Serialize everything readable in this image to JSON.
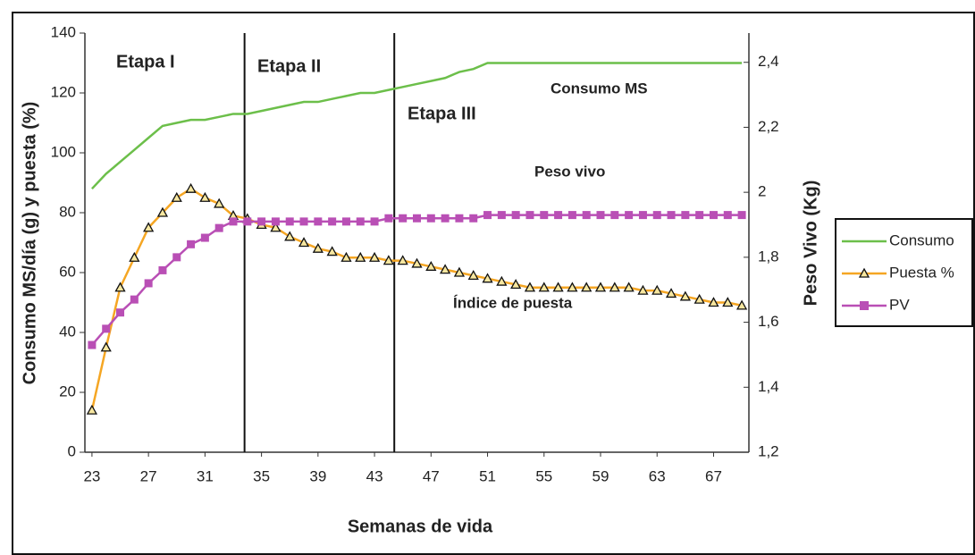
{
  "chart_data": {
    "type": "line",
    "xlabel": "Semanas de vida",
    "ylabel": "Consumo MS/día (g) y puesta (%)",
    "y2label": "Peso Vivo (Kg)",
    "x": [
      23,
      24,
      25,
      26,
      27,
      28,
      29,
      30,
      31,
      32,
      33,
      34,
      35,
      36,
      37,
      38,
      39,
      40,
      41,
      42,
      43,
      44,
      45,
      46,
      47,
      48,
      49,
      50,
      51,
      52,
      53,
      54,
      55,
      56,
      57,
      58,
      59,
      60,
      61,
      62,
      63,
      64,
      65,
      66,
      67,
      68,
      69
    ],
    "xlim": [
      22.5,
      69.5
    ],
    "xticks": [
      23,
      27,
      31,
      35,
      39,
      43,
      47,
      51,
      55,
      59,
      63,
      67
    ],
    "ylim": [
      0,
      140
    ],
    "yticks": [
      0,
      20,
      40,
      60,
      80,
      100,
      120,
      140
    ],
    "y2lim": [
      1.2,
      2.49
    ],
    "y2ticks": [
      {
        "value": 1.2,
        "label": "1,2"
      },
      {
        "value": 1.4,
        "label": "1,4"
      },
      {
        "value": 1.6,
        "label": "1,6"
      },
      {
        "value": 1.8,
        "label": "1,8"
      },
      {
        "value": 2,
        "label": "2"
      },
      {
        "value": 2.2,
        "label": "2,2"
      },
      {
        "value": 2.4,
        "label": "2,4"
      }
    ],
    "stage_lines": [
      33.8,
      44.4
    ],
    "annotations": [
      "Etapa I",
      "Etapa II",
      "Etapa III",
      "Consumo MS",
      "Peso vivo",
      "Índice de puesta"
    ],
    "legend": "right",
    "series": [
      {
        "name": "Consumo",
        "color": "#6cbf4a",
        "marker": "none",
        "values": [
          88,
          93,
          97,
          101,
          105,
          109,
          110,
          111,
          111,
          112,
          113,
          113,
          114,
          115,
          116,
          117,
          117,
          118,
          119,
          120,
          120,
          121,
          122,
          123,
          124,
          125,
          127,
          128,
          130,
          130,
          130,
          130,
          130,
          130,
          130,
          130,
          130,
          130,
          130,
          130,
          130,
          130,
          130,
          130,
          130,
          130,
          130
        ]
      },
      {
        "name": "Puesta %",
        "color": "#f5a623",
        "marker": "triangle",
        "values": [
          14,
          35,
          55,
          65,
          75,
          80,
          85,
          88,
          85,
          83,
          79,
          78,
          76,
          75,
          72,
          70,
          68,
          67,
          65,
          65,
          65,
          64,
          64,
          63,
          62,
          61,
          60,
          59,
          58,
          57,
          56,
          55,
          55,
          55,
          55,
          55,
          55,
          55,
          55,
          54,
          54,
          53,
          52,
          51,
          50,
          50,
          49
        ]
      },
      {
        "name": "PV",
        "color": "#b94fb5",
        "marker": "square",
        "axis": "y2",
        "values": [
          1.53,
          1.58,
          1.63,
          1.67,
          1.72,
          1.76,
          1.8,
          1.84,
          1.86,
          1.89,
          1.91,
          1.91,
          1.91,
          1.91,
          1.91,
          1.91,
          1.91,
          1.91,
          1.91,
          1.91,
          1.91,
          1.92,
          1.92,
          1.92,
          1.92,
          1.92,
          1.92,
          1.92,
          1.93,
          1.93,
          1.93,
          1.93,
          1.93,
          1.93,
          1.93,
          1.93,
          1.93,
          1.93,
          1.93,
          1.93,
          1.93,
          1.93,
          1.93,
          1.93,
          1.93,
          1.93,
          1.93
        ]
      }
    ]
  }
}
